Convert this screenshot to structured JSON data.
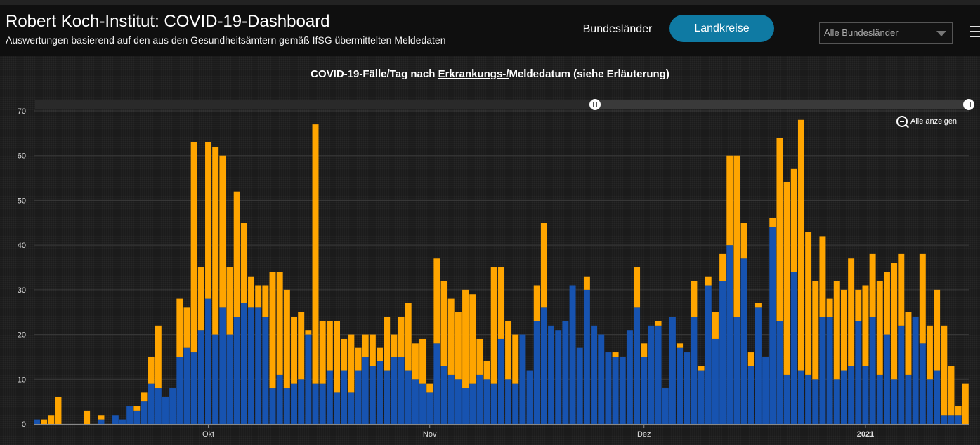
{
  "header": {
    "title": "Robert Koch-Institut: COVID-19-Dashboard",
    "subtitle": "Auswertungen basierend auf den aus den Gesundheitsämtern gemäß IfSG übermittelten Meldedaten",
    "tab_bundeslaender": "Bundesländer",
    "tab_landkreise": "Landkreise",
    "select_value": "Alle Bundesländer",
    "active_tab_color": "#0f7aa3"
  },
  "chart": {
    "title_part1": "COVID-19-Fälle/Tag nach ",
    "title_link": "Erkrankungs-/",
    "title_part2": "Meldedatum (siehe Erläuterung)",
    "zoom_reset_label": "Alle anzeigen"
  },
  "chart_data": {
    "type": "bar",
    "stacked": true,
    "ylim": [
      0,
      70
    ],
    "yticks": [
      0,
      10,
      20,
      30,
      40,
      50,
      60,
      70
    ],
    "x_tick_labels": [
      "Okt",
      "Nov",
      "Dez",
      "2021"
    ],
    "x_tick_day_index": [
      24,
      55,
      85,
      116
    ],
    "colors": {
      "series_blue": "#1753b0",
      "series_orange": "#ffa500"
    },
    "blue": [
      1,
      0,
      0,
      0,
      0,
      0,
      0,
      0,
      0,
      1,
      0,
      2,
      1,
      4,
      3,
      5,
      9,
      8,
      6,
      8,
      15,
      17,
      16,
      21,
      28,
      20,
      26,
      20,
      24,
      27,
      26,
      26,
      24,
      8,
      11,
      8,
      9,
      10,
      20,
      9,
      9,
      12,
      7,
      12,
      7,
      12,
      15,
      13,
      14,
      12,
      15,
      15,
      12,
      10,
      9,
      7,
      18,
      13,
      11,
      10,
      8,
      9,
      11,
      10,
      9,
      19,
      10,
      9,
      20,
      12,
      23,
      26,
      22,
      21,
      23,
      31,
      17,
      30,
      22,
      20,
      16,
      15,
      15,
      21,
      26,
      15,
      22,
      22,
      8,
      24,
      17,
      16,
      24,
      12,
      31,
      19,
      32,
      40,
      24,
      37,
      13,
      26,
      15,
      44,
      23,
      11,
      34,
      12,
      11,
      10,
      24,
      24,
      10,
      12,
      13,
      23,
      13,
      24,
      11,
      20,
      10,
      22,
      11,
      24,
      18,
      10,
      12,
      2,
      2,
      2,
      0
    ],
    "orange": [
      0,
      1,
      2,
      6,
      0,
      0,
      0,
      3,
      0,
      1,
      0,
      0,
      0,
      0,
      1,
      2,
      6,
      14,
      0,
      0,
      13,
      9,
      47,
      14,
      35,
      42,
      34,
      15,
      28,
      18,
      7,
      5,
      7,
      26,
      23,
      22,
      15,
      15,
      1,
      58,
      14,
      11,
      16,
      7,
      13,
      5,
      5,
      7,
      3,
      12,
      5,
      9,
      15,
      8,
      10,
      2,
      19,
      19,
      17,
      15,
      22,
      20,
      8,
      4,
      26,
      16,
      13,
      11,
      0,
      0,
      8,
      19,
      0,
      0,
      0,
      0,
      0,
      3,
      0,
      0,
      0,
      1,
      0,
      0,
      9,
      3,
      0,
      1,
      0,
      0,
      1,
      0,
      8,
      1,
      2,
      6,
      6,
      20,
      36,
      8,
      3,
      1,
      0,
      2,
      41,
      43,
      23,
      56,
      32,
      22,
      18,
      4,
      22,
      18,
      24,
      7,
      18,
      14,
      21,
      14,
      26,
      16,
      14,
      0,
      20,
      12,
      18,
      20,
      11,
      2,
      9
    ]
  }
}
